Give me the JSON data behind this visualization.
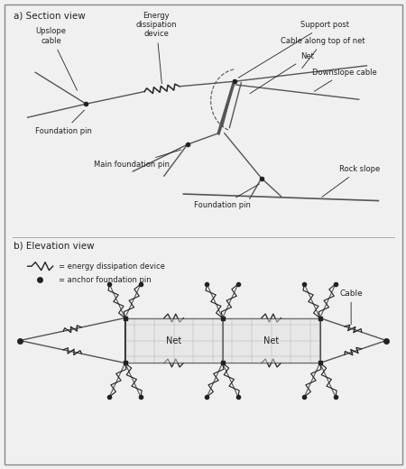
{
  "bg_color": "#f0f0f0",
  "line_color": "#555555",
  "dark_color": "#222222",
  "section_title_a": "a) Section view",
  "section_title_b": "b) Elevation view",
  "legend_edd": "= energy dissipation device",
  "legend_afp": "= anchor foundation pin",
  "label_cable": "Cable",
  "label_net1": "Net",
  "label_net2": "Net",
  "upslope_cable": "Upslope\ncable",
  "energy_diss": "Energy\ndissipation\ndevice",
  "support_post": "Support post",
  "cable_top": "Cable along top of net",
  "net_lbl": "Net",
  "downslope_cable": "Downslope cable",
  "foundation_pin1": "Foundation pin",
  "main_foundation": "Main foundation pin",
  "foundation_pin2": "Foundation pin",
  "rock_slope": "Rock slope"
}
